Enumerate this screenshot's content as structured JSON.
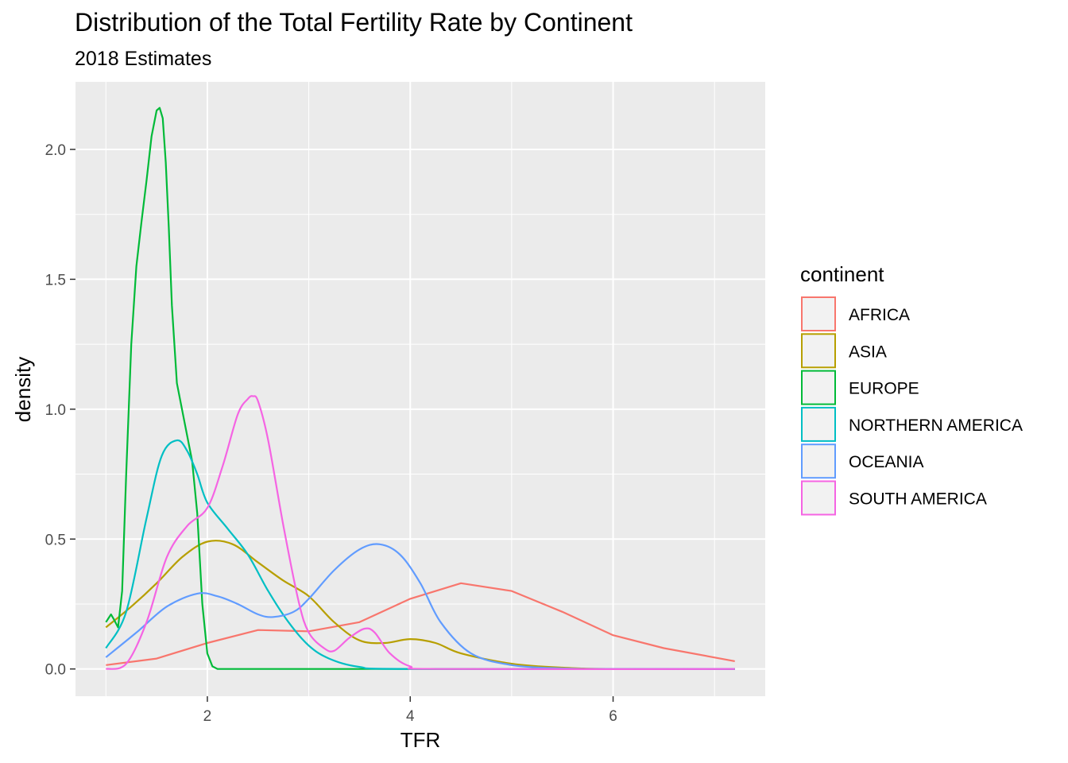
{
  "chart_data": {
    "type": "line",
    "title": "Distribution of the Total Fertility Rate by Continent",
    "subtitle": "2018 Estimates",
    "xlabel": "TFR",
    "ylabel": "density",
    "xlim": [
      0.7,
      7.5
    ],
    "ylim": [
      -0.105,
      2.26
    ],
    "x_ticks": [
      2,
      4,
      6
    ],
    "x_tick_labels": [
      "2",
      "4",
      "6"
    ],
    "y_ticks": [
      0.0,
      0.5,
      1.0,
      1.5,
      2.0
    ],
    "y_tick_labels": [
      "0.0",
      "0.5",
      "1.0",
      "1.5",
      "2.0"
    ],
    "grid": true,
    "legend_title": "continent",
    "legend_position": "right",
    "series": [
      {
        "name": "AFRICA",
        "color": "#F8766D",
        "x": [
          1.0,
          1.5,
          2.0,
          2.5,
          3.0,
          3.5,
          4.0,
          4.5,
          5.0,
          5.5,
          6.0,
          6.5,
          7.2
        ],
        "y": [
          0.015,
          0.04,
          0.1,
          0.15,
          0.145,
          0.18,
          0.27,
          0.33,
          0.3,
          0.22,
          0.13,
          0.08,
          0.03
        ]
      },
      {
        "name": "ASIA",
        "color": "#B79F00",
        "x": [
          1.0,
          1.25,
          1.5,
          1.75,
          2.0,
          2.25,
          2.5,
          2.75,
          3.0,
          3.25,
          3.5,
          3.75,
          4.0,
          4.25,
          4.5,
          5.0,
          5.5,
          6.0,
          7.2
        ],
        "y": [
          0.16,
          0.24,
          0.33,
          0.43,
          0.49,
          0.48,
          0.41,
          0.34,
          0.28,
          0.18,
          0.11,
          0.1,
          0.115,
          0.1,
          0.06,
          0.02,
          0.005,
          0.0,
          0.0
        ],
        "smooth": true
      },
      {
        "name": "EUROPE",
        "color": "#00BA38",
        "x": [
          1.0,
          1.05,
          1.08,
          1.12,
          1.16,
          1.2,
          1.25,
          1.3,
          1.35,
          1.4,
          1.45,
          1.5,
          1.53,
          1.56,
          1.59,
          1.62,
          1.65,
          1.7,
          1.75,
          1.8,
          1.85,
          1.9,
          1.95,
          2.0,
          2.05,
          2.1,
          2.2,
          3.0,
          7.2
        ],
        "y": [
          0.18,
          0.21,
          0.19,
          0.16,
          0.3,
          0.75,
          1.25,
          1.55,
          1.72,
          1.88,
          2.05,
          2.15,
          2.16,
          2.12,
          1.95,
          1.7,
          1.4,
          1.1,
          1.0,
          0.9,
          0.8,
          0.6,
          0.25,
          0.06,
          0.01,
          0.0,
          0.0,
          0.0,
          0.0
        ]
      },
      {
        "name": "NORTHERN AMERICA",
        "color": "#00BFC4",
        "x": [
          1.0,
          1.2,
          1.4,
          1.55,
          1.7,
          1.8,
          1.9,
          2.0,
          2.2,
          2.4,
          2.6,
          2.8,
          3.0,
          3.2,
          3.5,
          4.0,
          7.2
        ],
        "y": [
          0.08,
          0.22,
          0.58,
          0.82,
          0.88,
          0.84,
          0.75,
          0.64,
          0.54,
          0.44,
          0.3,
          0.18,
          0.09,
          0.04,
          0.008,
          0.0,
          0.0
        ],
        "smooth": true
      },
      {
        "name": "OCEANIA",
        "color": "#619CFF",
        "x": [
          1.0,
          1.3,
          1.6,
          1.9,
          2.1,
          2.3,
          2.5,
          2.65,
          2.85,
          3.0,
          3.25,
          3.5,
          3.7,
          3.9,
          4.1,
          4.3,
          4.6,
          5.0,
          5.5,
          6.0,
          7.2
        ],
        "y": [
          0.045,
          0.14,
          0.24,
          0.29,
          0.28,
          0.25,
          0.21,
          0.2,
          0.22,
          0.27,
          0.38,
          0.46,
          0.48,
          0.44,
          0.33,
          0.18,
          0.06,
          0.015,
          0.002,
          0.0,
          0.0
        ],
        "smooth": true
      },
      {
        "name": "SOUTH AMERICA",
        "color": "#F564E3",
        "x": [
          1.0,
          1.2,
          1.4,
          1.6,
          1.8,
          2.0,
          2.15,
          2.3,
          2.4,
          2.45,
          2.5,
          2.6,
          2.75,
          2.9,
          3.0,
          3.15,
          3.25,
          3.4,
          3.55,
          3.65,
          3.8,
          4.0,
          4.3,
          7.2
        ],
        "y": [
          0.0,
          0.02,
          0.18,
          0.43,
          0.55,
          0.62,
          0.78,
          0.98,
          1.04,
          1.05,
          1.03,
          0.88,
          0.55,
          0.26,
          0.14,
          0.08,
          0.07,
          0.12,
          0.155,
          0.14,
          0.06,
          0.01,
          0.0,
          0.0
        ],
        "smooth": true
      }
    ]
  }
}
